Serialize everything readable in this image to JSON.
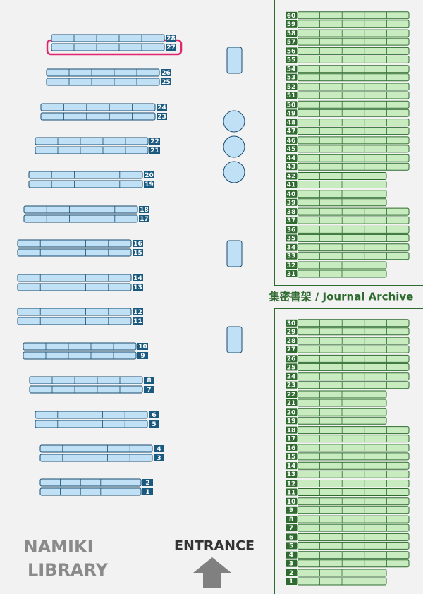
{
  "library_name": [
    "NAMIKI",
    "LIBRARY"
  ],
  "entrance": "ENTRANCE",
  "archive_label": "集密書架 / Journal Archive",
  "selected_shelf": 27,
  "shelves": [
    1,
    2,
    3,
    4,
    5,
    6,
    7,
    8,
    9,
    10,
    11,
    12,
    13,
    14,
    15,
    16,
    17,
    18,
    19,
    20,
    21,
    22,
    23,
    24,
    25,
    26,
    27,
    28
  ],
  "archive_shelves": [
    1,
    2,
    3,
    4,
    5,
    6,
    7,
    8,
    9,
    10,
    11,
    12,
    13,
    14,
    15,
    16,
    17,
    18,
    19,
    20,
    21,
    22,
    23,
    24,
    25,
    26,
    27,
    28,
    29,
    30,
    31,
    32,
    33,
    34,
    35,
    36,
    37,
    38,
    39,
    40,
    41,
    42,
    43,
    44,
    45,
    46,
    47,
    48,
    49,
    50,
    51,
    52,
    53,
    54,
    55,
    56,
    57,
    58,
    59,
    60
  ]
}
